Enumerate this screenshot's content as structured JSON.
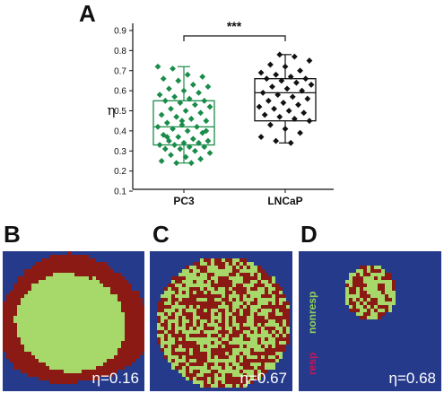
{
  "panels": {
    "A": "A",
    "B": "B",
    "C": "C",
    "D": "D"
  },
  "chart_data": {
    "type": "box",
    "ylabel": "η",
    "ylim": [
      0.1,
      0.9
    ],
    "yticks": [
      "0.1",
      "0.2",
      "0.3",
      "0.4",
      "0.5",
      "0.6",
      "0.7",
      "0.8",
      "0.9"
    ],
    "categories": [
      "PC3",
      "LNCaP"
    ],
    "significance": "***",
    "series": [
      {
        "name": "PC3",
        "color": "#1a8c4a",
        "box": {
          "q1": 0.33,
          "median": 0.42,
          "q3": 0.55,
          "whisker_low": 0.24,
          "whisker_high": 0.72
        },
        "points": [
          0.72,
          0.71,
          0.68,
          0.67,
          0.66,
          0.65,
          0.63,
          0.62,
          0.61,
          0.6,
          0.59,
          0.58,
          0.57,
          0.56,
          0.55,
          0.55,
          0.54,
          0.53,
          0.52,
          0.51,
          0.5,
          0.49,
          0.48,
          0.47,
          0.46,
          0.45,
          0.44,
          0.43,
          0.42,
          0.42,
          0.41,
          0.4,
          0.39,
          0.38,
          0.37,
          0.36,
          0.35,
          0.35,
          0.34,
          0.34,
          0.33,
          0.33,
          0.32,
          0.32,
          0.31,
          0.31,
          0.3,
          0.29,
          0.28,
          0.27,
          0.26,
          0.25,
          0.24,
          0.24,
          0.4,
          0.37,
          0.45
        ]
      },
      {
        "name": "LNCaP",
        "color": "#111111",
        "box": {
          "q1": 0.45,
          "median": 0.59,
          "q3": 0.66,
          "whisker_low": 0.34,
          "whisker_high": 0.78
        },
        "points": [
          0.78,
          0.77,
          0.75,
          0.73,
          0.72,
          0.7,
          0.69,
          0.68,
          0.67,
          0.66,
          0.66,
          0.65,
          0.64,
          0.63,
          0.62,
          0.61,
          0.6,
          0.59,
          0.58,
          0.57,
          0.56,
          0.55,
          0.54,
          0.53,
          0.52,
          0.51,
          0.5,
          0.49,
          0.48,
          0.47,
          0.46,
          0.45,
          0.43,
          0.41,
          0.39,
          0.37,
          0.35,
          0.34
        ]
      }
    ]
  },
  "simulations": [
    {
      "id": "B",
      "eta": "η=0.16",
      "pattern": "core"
    },
    {
      "id": "C",
      "eta": "η=0.67",
      "pattern": "mixed"
    },
    {
      "id": "D",
      "eta": "η=0.68",
      "pattern": "small-mixed",
      "legend": {
        "nonresp": "nonresp",
        "resp": "resp"
      }
    }
  ],
  "colors": {
    "background": "#263a8c",
    "nonresp": "#a6d86a",
    "resp": "#8b1a14"
  }
}
